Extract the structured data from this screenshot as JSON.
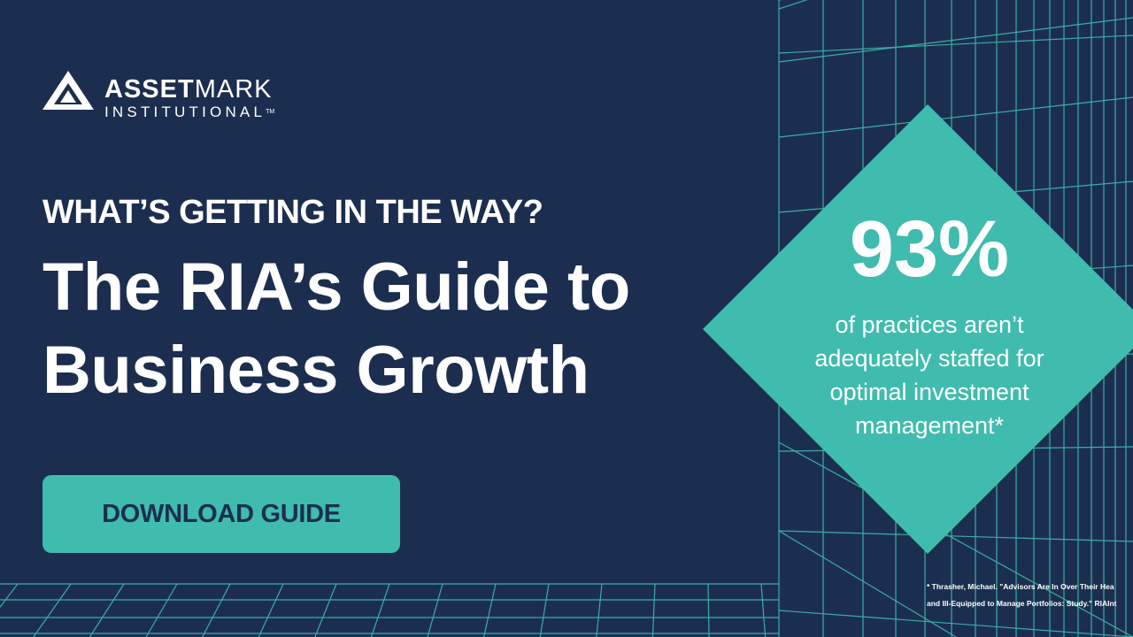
{
  "colors": {
    "background": "#1c2e4f",
    "accent": "#3fbcae",
    "grid": "#3fbcae",
    "text": "#ffffff"
  },
  "brand": {
    "name_bold": "ASSET",
    "name_regular": "MARK",
    "subtitle": "INSTITUTIONAL",
    "trademark": "TM"
  },
  "hero": {
    "eyebrow": "WHAT’S GETTING IN THE WAY?",
    "headline_line1": "The RIA’s Guide to",
    "headline_line2": "Business Growth"
  },
  "cta": {
    "label": "DOWNLOAD GUIDE"
  },
  "stat": {
    "value": "93%",
    "text": "of practices aren’t adequately staffed for optimal investment management*"
  },
  "footnote": {
    "line1": "* Thrasher, Michael. \"Advisors Are In Over Their Hea",
    "line2": "and Ill-Equipped to Manage Portfolios: Study.\" RIAInt"
  }
}
